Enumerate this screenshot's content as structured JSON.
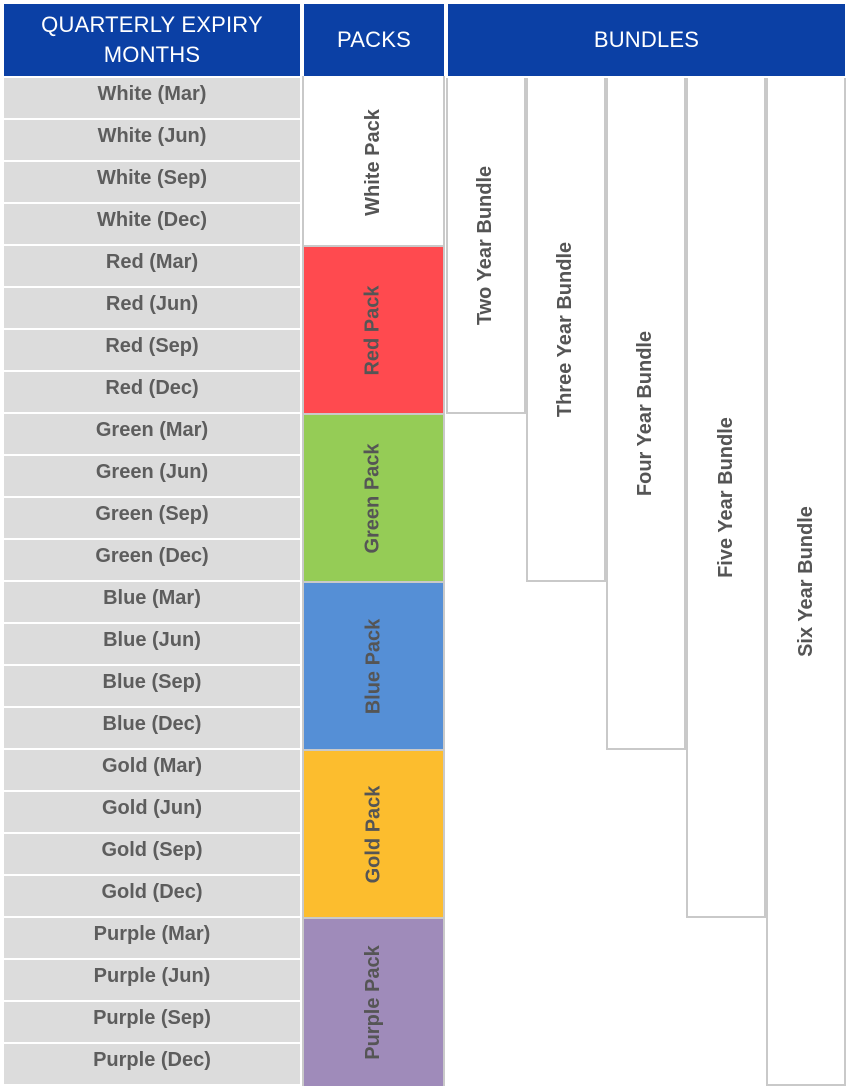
{
  "headers": {
    "months_line1": "QUARTERLY EXPIRY",
    "months_line2": "MONTHS",
    "packs": "PACKS",
    "bundles": "BUNDLES"
  },
  "months": [
    "White (Mar)",
    "White (Jun)",
    "White (Sep)",
    "White (Dec)",
    "Red (Mar)",
    "Red (Jun)",
    "Red (Sep)",
    "Red (Dec)",
    "Green (Mar)",
    "Green (Jun)",
    "Green (Sep)",
    "Green (Dec)",
    "Blue (Mar)",
    "Blue (Jun)",
    "Blue (Sep)",
    "Blue (Dec)",
    "Gold (Mar)",
    "Gold (Jun)",
    "Gold (Sep)",
    "Gold (Dec)",
    "Purple (Mar)",
    "Purple (Jun)",
    "Purple (Sep)",
    "Purple (Dec)"
  ],
  "packs": [
    {
      "label": "White Pack",
      "color": "#ffffff"
    },
    {
      "label": "Red Pack",
      "color": "#ff4a4f"
    },
    {
      "label": "Green Pack",
      "color": "#95cc56"
    },
    {
      "label": "Blue Pack",
      "color": "#558fd6"
    },
    {
      "label": "Gold Pack",
      "color": "#fcbd2e"
    },
    {
      "label": "Purple Pack",
      "color": "#9f8bba"
    }
  ],
  "bundles": [
    {
      "label": "Two Year Bundle",
      "packs_covered": 2
    },
    {
      "label": "Three Year Bundle",
      "packs_covered": 3
    },
    {
      "label": "Four Year Bundle",
      "packs_covered": 4
    },
    {
      "label": "Five Year Bundle",
      "packs_covered": 5
    },
    {
      "label": "Six Year Bundle",
      "packs_covered": 6
    }
  ]
}
